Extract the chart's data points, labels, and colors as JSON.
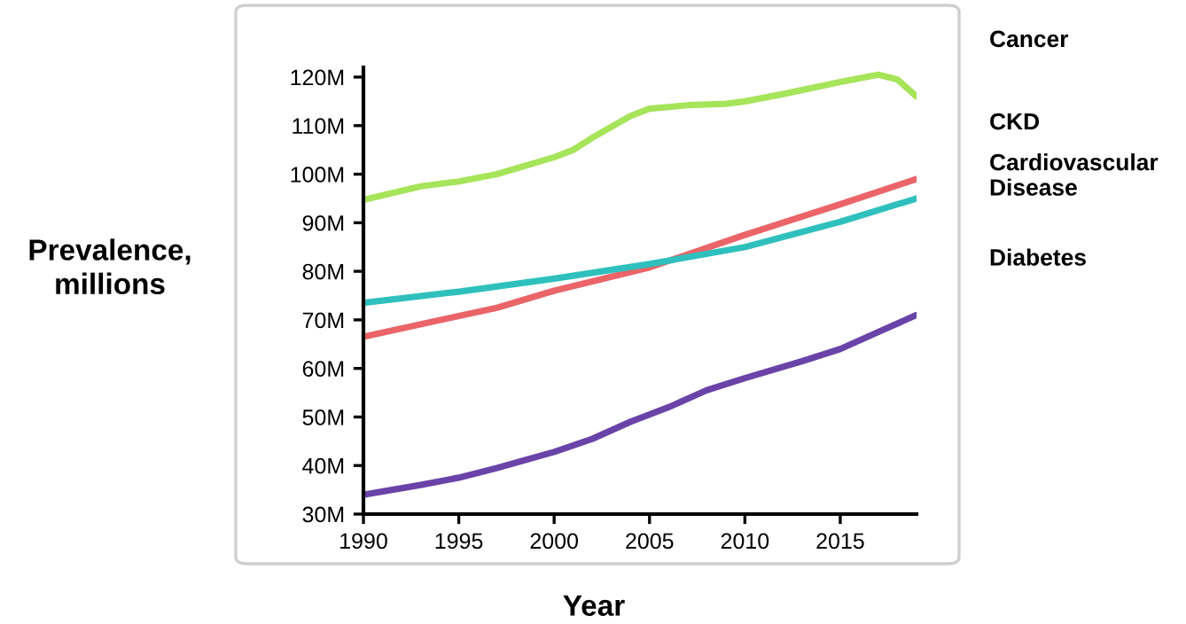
{
  "chart_data": {
    "type": "line",
    "xlabel": "Year",
    "ylabel": "Prevalence,\nmillions",
    "x": [
      1990,
      1993,
      1995,
      1997,
      2000,
      2001,
      2002,
      2004,
      2005,
      2007,
      2009,
      2010,
      2012,
      2015,
      2017,
      2018,
      2019
    ],
    "series": [
      {
        "name": "Cancer",
        "color": "#a6e45a",
        "values": [
          94.7,
          97.5,
          98.5,
          100,
          103.5,
          105,
          107.5,
          112,
          113.5,
          114.2,
          114.5,
          115,
          116.5,
          119,
          120.5,
          119.5,
          116
        ]
      },
      {
        "name": "CKD",
        "color": "#ea6468",
        "x": [
          1990,
          1995,
          1997,
          2000,
          2005,
          2010,
          2015,
          2019
        ],
        "values": [
          66.5,
          70.8,
          72.5,
          76,
          80.8,
          87.5,
          93.8,
          99
        ]
      },
      {
        "name": "Cardiovascular\nDisease",
        "color": "#2fc0bd",
        "x": [
          1990,
          1995,
          2000,
          2005,
          2010,
          2015,
          2019
        ],
        "values": [
          73.5,
          75.8,
          78.5,
          81.5,
          85,
          90.2,
          95
        ]
      },
      {
        "name": "Diabetes",
        "color": "#6a43a8",
        "x": [
          1990,
          1993,
          1995,
          1997,
          2000,
          2002,
          2004,
          2006,
          2008,
          2010,
          2013,
          2015,
          2017,
          2019
        ],
        "values": [
          34,
          36,
          37.5,
          39.5,
          42.8,
          45.5,
          49,
          52,
          55.5,
          58,
          61.5,
          64,
          67.5,
          71
        ]
      }
    ],
    "xlim": [
      1990,
      2019
    ],
    "xticks": [
      1990,
      1995,
      2000,
      2005,
      2010,
      2015
    ],
    "ylim": [
      30,
      122
    ],
    "yticks": [
      {
        "value": 30,
        "label": "30M"
      },
      {
        "value": 40,
        "label": "40M"
      },
      {
        "value": 50,
        "label": "50M"
      },
      {
        "value": 60,
        "label": "60M"
      },
      {
        "value": 70,
        "label": "70M"
      },
      {
        "value": 80,
        "label": "80M"
      },
      {
        "value": 90,
        "label": "90M"
      },
      {
        "value": 100,
        "label": "100M"
      },
      {
        "value": 110,
        "label": "110M"
      },
      {
        "value": 120,
        "label": "120M"
      }
    ],
    "grid": false,
    "legend": false,
    "marker": "none",
    "line_style": "solid"
  }
}
